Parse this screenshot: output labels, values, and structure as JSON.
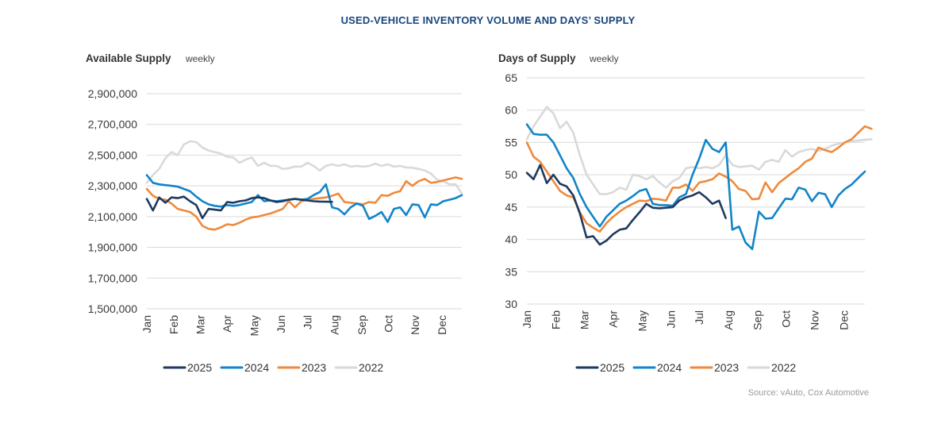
{
  "title": "USED-VEHICLE INVENTORY VOLUME AND DAYS’ SUPPLY",
  "source": "Source: vAuto, Cox Automotive",
  "colors": {
    "2025": "#1f3a5f",
    "2024": "#1185c8",
    "2023": "#ef8a3c",
    "2022": "#d9d9d9",
    "title": "#17467f"
  },
  "chart_data": [
    {
      "type": "line",
      "title": "Available Supply",
      "subtitle": "weekly",
      "ylim": [
        1500000,
        2900000
      ],
      "yticks": [
        1500000,
        1700000,
        1900000,
        2100000,
        2300000,
        2500000,
        2700000,
        2900000
      ],
      "ytick_labels": [
        "1,500,000",
        "1,700,000",
        "1,900,000",
        "2,100,000",
        "2,300,000",
        "2,500,000",
        "2,700,000",
        "2,900,000"
      ],
      "xlim": [
        0,
        51
      ],
      "months": [
        "Jan",
        "Feb",
        "Mar",
        "Apr",
        "May",
        "Jun",
        "Jul",
        "Aug",
        "Sep",
        "Oct",
        "Nov",
        "Dec"
      ],
      "month_weeks": [
        0,
        4.35,
        8.7,
        13,
        17.4,
        21.7,
        26,
        30.4,
        34.8,
        39.1,
        43.4,
        47.8
      ],
      "series": [
        {
          "name": "2025",
          "values": [
            2215000,
            2140000,
            2225000,
            2190000,
            2225000,
            2220000,
            2230000,
            2200000,
            2175000,
            2090000,
            2150000,
            2145000,
            2140000,
            2195000,
            2190000,
            2200000,
            2205000,
            2220000,
            2225000,
            2220000,
            2205000,
            2195000,
            2200000,
            2210000,
            2215000,
            2210000,
            2205000,
            2200000,
            2198000,
            2197000,
            2196000
          ]
        },
        {
          "name": "2024",
          "values": [
            2370000,
            2320000,
            2310000,
            2305000,
            2300000,
            2295000,
            2280000,
            2265000,
            2230000,
            2200000,
            2180000,
            2170000,
            2165000,
            2175000,
            2170000,
            2175000,
            2185000,
            2195000,
            2240000,
            2200000,
            2205000,
            2200000,
            2205000,
            2210000,
            2215000,
            2210000,
            2215000,
            2240000,
            2260000,
            2310000,
            2160000,
            2150000,
            2115000,
            2160000,
            2185000,
            2170000,
            2085000,
            2105000,
            2130000,
            2065000,
            2150000,
            2160000,
            2110000,
            2180000,
            2175000,
            2095000,
            2180000,
            2175000,
            2200000,
            2210000,
            2220000,
            2240000
          ]
        },
        {
          "name": "2023",
          "values": [
            2280000,
            2235000,
            2215000,
            2210000,
            2185000,
            2150000,
            2140000,
            2130000,
            2100000,
            2040000,
            2020000,
            2015000,
            2030000,
            2050000,
            2045000,
            2060000,
            2080000,
            2095000,
            2100000,
            2110000,
            2120000,
            2135000,
            2150000,
            2200000,
            2160000,
            2200000,
            2210000,
            2215000,
            2220000,
            2225000,
            2235000,
            2250000,
            2195000,
            2190000,
            2185000,
            2180000,
            2195000,
            2190000,
            2240000,
            2235000,
            2255000,
            2265000,
            2330000,
            2300000,
            2330000,
            2345000,
            2320000,
            2325000,
            2335000,
            2345000,
            2355000,
            2345000
          ]
        },
        {
          "name": "2022",
          "values": [
            2320000,
            2370000,
            2410000,
            2480000,
            2520000,
            2500000,
            2570000,
            2590000,
            2585000,
            2550000,
            2530000,
            2520000,
            2510000,
            2490000,
            2485000,
            2450000,
            2470000,
            2485000,
            2430000,
            2450000,
            2430000,
            2430000,
            2410000,
            2415000,
            2425000,
            2425000,
            2450000,
            2430000,
            2400000,
            2430000,
            2440000,
            2430000,
            2440000,
            2425000,
            2430000,
            2425000,
            2430000,
            2445000,
            2430000,
            2440000,
            2425000,
            2430000,
            2420000,
            2418000,
            2410000,
            2400000,
            2380000,
            2340000,
            2330000,
            2310000,
            2310000,
            2250000
          ]
        }
      ]
    },
    {
      "type": "line",
      "title": "Days of Supply",
      "subtitle": "weekly",
      "ylim": [
        30,
        65
      ],
      "yticks": [
        30,
        35,
        40,
        45,
        50,
        55,
        60,
        65
      ],
      "ytick_labels": [
        "30",
        "35",
        "40",
        "45",
        "50",
        "55",
        "60",
        "65"
      ],
      "xlim": [
        0,
        51
      ],
      "months": [
        "Jan",
        "Feb",
        "Mar",
        "Apr",
        "May",
        "Jun",
        "Jul",
        "Aug",
        "Sep",
        "Oct",
        "Nov",
        "Dec"
      ],
      "month_weeks": [
        0,
        4.35,
        8.7,
        13,
        17.4,
        21.7,
        26,
        30.4,
        34.8,
        39.1,
        43.4,
        47.8
      ],
      "series": [
        {
          "name": "2025",
          "values": [
            50.3,
            49.3,
            51.5,
            48.7,
            50.0,
            48.6,
            48.2,
            46.8,
            44.0,
            40.3,
            40.5,
            39.2,
            39.8,
            40.8,
            41.5,
            41.7,
            43.0,
            44.2,
            45.5,
            44.9,
            44.8,
            44.9,
            45.0,
            46.0,
            46.5,
            46.8,
            47.3,
            46.5,
            45.5,
            46.0,
            43.3
          ]
        },
        {
          "name": "2024",
          "values": [
            57.8,
            56.3,
            56.2,
            56.2,
            55.0,
            53.0,
            51.0,
            49.5,
            47.0,
            45.0,
            43.5,
            42.0,
            43.5,
            44.5,
            45.5,
            46.0,
            46.7,
            47.5,
            47.8,
            45.5,
            45.3,
            45.3,
            45.2,
            46.5,
            47.0,
            50.0,
            52.5,
            55.4,
            54.0,
            53.5,
            55.0,
            41.5,
            42.0,
            39.5,
            38.5,
            44.3,
            43.2,
            43.3,
            44.8,
            46.3,
            46.2,
            48.0,
            47.7,
            45.9,
            47.2,
            47.0,
            45.0,
            46.8,
            47.8,
            48.5,
            49.5,
            50.5
          ]
        },
        {
          "name": "2023",
          "values": [
            55.0,
            52.8,
            52.0,
            50.5,
            49.0,
            47.5,
            46.8,
            46.5,
            44.2,
            42.5,
            41.8,
            41.2,
            42.5,
            43.5,
            44.3,
            45.0,
            45.5,
            46.0,
            45.9,
            46.3,
            46.2,
            46.0,
            48.0,
            48.0,
            48.5,
            47.5,
            48.8,
            49.0,
            49.3,
            50.2,
            49.7,
            49.0,
            47.8,
            47.5,
            46.2,
            46.3,
            48.8,
            47.3,
            48.7,
            49.5,
            50.3,
            51.0,
            52.0,
            52.5,
            54.2,
            53.8,
            53.5,
            54.2,
            55.0,
            55.5,
            56.5,
            57.5,
            57.1
          ]
        },
        {
          "name": "2022",
          "values": [
            55.5,
            57.5,
            59.0,
            60.5,
            59.5,
            57.2,
            58.2,
            56.5,
            53.0,
            50.0,
            48.5,
            47.0,
            47.0,
            47.3,
            48.0,
            47.7,
            50.0,
            49.8,
            49.3,
            49.8,
            48.8,
            48.0,
            49.0,
            49.5,
            51.0,
            51.2,
            51.0,
            51.2,
            51.0,
            51.5,
            53.0,
            51.5,
            51.2,
            51.3,
            51.4,
            50.8,
            52.0,
            52.3,
            52.0,
            53.8,
            52.8,
            53.5,
            53.8,
            54.0,
            53.7,
            54.0,
            54.5,
            54.8,
            55.0,
            55.2,
            55.3,
            55.4,
            55.5
          ]
        }
      ]
    }
  ],
  "legend": [
    "2025",
    "2024",
    "2023",
    "2022"
  ]
}
